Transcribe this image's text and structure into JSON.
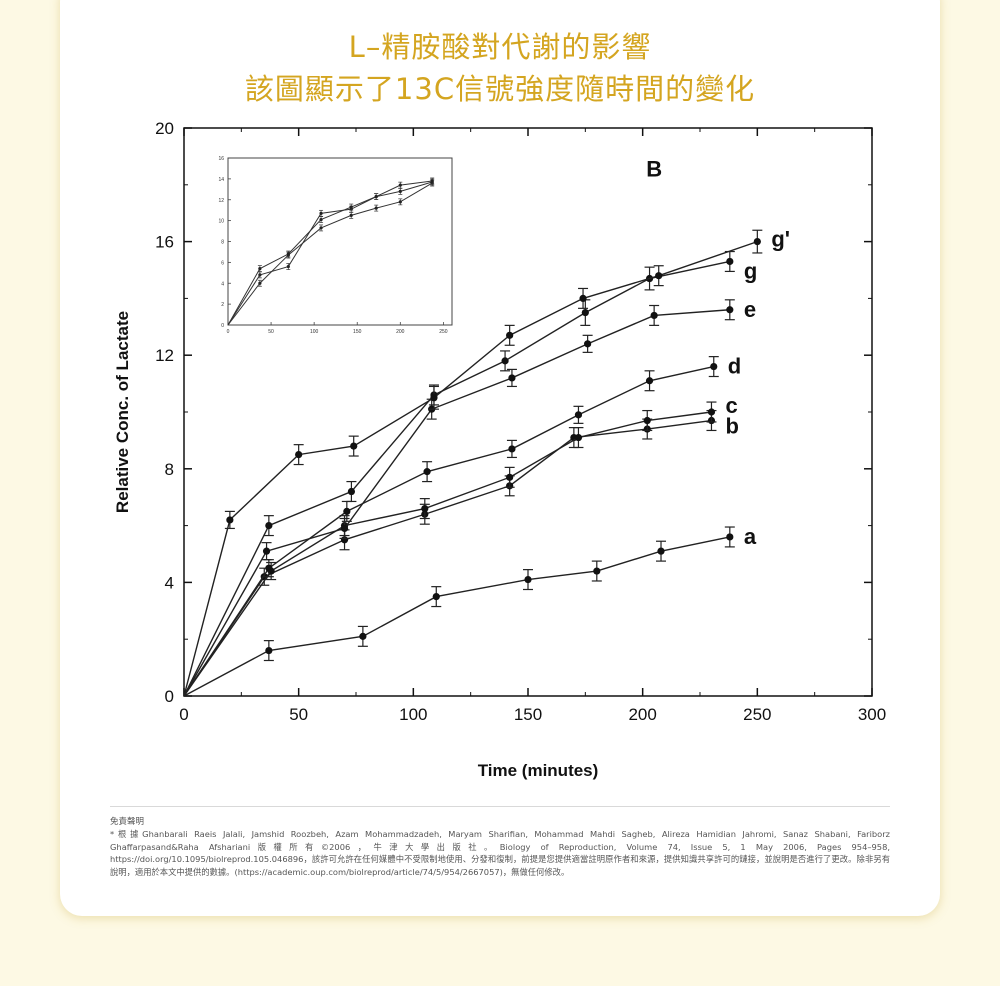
{
  "page": {
    "title_line1": "L–精胺酸對代謝的影響",
    "title_line2": "該圖顯示了13C信號強度隨時間的變化",
    "disclaimer_title": "免責聲明",
    "disclaimer_text": "*根據Ghanbarali Raeis Jalali, Jamshid Roozbeh, Azam Mohammadzadeh, Maryam Sharifian, Mohammad Mahdi Sagheb, Alireza Hamidian Jahromi, Sanaz Shabani, Fariborz Ghaffarpasand&Raha Afshariani版權所有©2006，牛津大學出版社。Biology of Reproduction, Volume 74, Issue 5, 1 May 2006, Pages 954–958, https://doi.org/10.1095/biolreprod.105.046896，該許可允許在任何媒體中不受限制地使用、分發和復制，前提是您提供適當註明原作者和來源，提供知識共享許可的鏈接，並說明是否進行了更改。除非另有說明，適用於本文中提供的數據。(https://academic.oup.com/biolreprod/article/74/5/954/2667057)，無做任何修改。",
    "background_color": "#fdf9e4",
    "title_color": "#d4a520"
  },
  "chart_data": {
    "type": "line",
    "panel_label": "B",
    "xlabel": "Time (minutes)",
    "ylabel": "Relative Conc. of Lactate",
    "xlim": [
      0,
      300
    ],
    "ylim": [
      0,
      20
    ],
    "x_ticks": [
      0,
      50,
      100,
      150,
      200,
      250,
      300
    ],
    "y_ticks": [
      0,
      4,
      8,
      12,
      16,
      20
    ],
    "grid": false,
    "series": [
      {
        "name": "a",
        "x": [
          0,
          37,
          78,
          110,
          150,
          180,
          208,
          238
        ],
        "y": [
          0,
          1.6,
          2.1,
          3.5,
          4.1,
          4.4,
          5.1,
          5.6
        ],
        "err": [
          0,
          0.35,
          0.35,
          0.35,
          0.35,
          0.35,
          0.35,
          0.35
        ]
      },
      {
        "name": "b",
        "x": [
          0,
          35,
          70,
          105,
          142,
          170,
          202,
          230
        ],
        "y": [
          0,
          4.2,
          5.5,
          6.4,
          7.4,
          9.1,
          9.4,
          9.7
        ],
        "err": [
          0,
          0.3,
          0.35,
          0.35,
          0.35,
          0.35,
          0.35,
          0.35
        ]
      },
      {
        "name": "c",
        "x": [
          0,
          38,
          70,
          105,
          142,
          172,
          202,
          230
        ],
        "y": [
          0,
          4.4,
          6.0,
          6.6,
          7.7,
          9.1,
          9.7,
          10.0
        ],
        "err": [
          0,
          0.3,
          0.35,
          0.35,
          0.35,
          0.35,
          0.35,
          0.35
        ]
      },
      {
        "name": "d",
        "x": [
          0,
          37,
          71,
          106,
          143,
          172,
          203,
          231
        ],
        "y": [
          0,
          4.5,
          6.5,
          7.9,
          8.7,
          9.9,
          11.1,
          11.6
        ],
        "err": [
          0,
          0.3,
          0.35,
          0.35,
          0.3,
          0.3,
          0.35,
          0.35
        ]
      },
      {
        "name": "e",
        "x": [
          0,
          36,
          70,
          108,
          143,
          176,
          205,
          238
        ],
        "y": [
          0,
          5.1,
          5.9,
          10.1,
          11.2,
          12.4,
          13.4,
          13.6
        ],
        "err": [
          0,
          0.3,
          0.35,
          0.35,
          0.3,
          0.3,
          0.35,
          0.35
        ]
      },
      {
        "name": "g",
        "x": [
          0,
          37,
          73,
          109,
          140,
          175,
          203,
          238
        ],
        "y": [
          0,
          6.0,
          7.2,
          10.6,
          11.8,
          13.5,
          14.7,
          15.3
        ],
        "err": [
          0,
          0.35,
          0.35,
          0.35,
          0.35,
          0.45,
          0.4,
          0.35
        ]
      },
      {
        "name": "g'",
        "x": [
          0,
          20,
          50,
          74,
          109,
          142,
          174,
          207,
          250
        ],
        "y": [
          0,
          6.2,
          8.5,
          8.8,
          10.5,
          12.7,
          14.0,
          14.8,
          16.0
        ],
        "err": [
          0,
          0.3,
          0.35,
          0.35,
          0.4,
          0.35,
          0.35,
          0.35,
          0.4
        ]
      }
    ],
    "inset": {
      "xlim": [
        0,
        260
      ],
      "ylim": [
        0,
        16
      ],
      "x_ticks": [
        0,
        50,
        100,
        150,
        200,
        250
      ],
      "y_ticks": [
        0,
        2,
        4,
        6,
        8,
        10,
        12,
        14,
        16
      ],
      "series": [
        {
          "x": [
            0,
            37,
            70,
            108,
            143,
            172,
            200,
            237
          ],
          "y": [
            0,
            4.0,
            6.7,
            9.3,
            10.5,
            11.2,
            11.8,
            13.6
          ]
        },
        {
          "x": [
            0,
            37,
            70,
            108,
            143,
            172,
            200,
            237
          ],
          "y": [
            0,
            4.8,
            5.6,
            10.7,
            11.1,
            12.3,
            12.8,
            13.7
          ]
        },
        {
          "x": [
            0,
            37,
            70,
            108,
            143,
            172,
            200,
            237
          ],
          "y": [
            0,
            5.4,
            6.8,
            10.1,
            11.3,
            12.3,
            13.4,
            13.8
          ]
        }
      ]
    }
  }
}
